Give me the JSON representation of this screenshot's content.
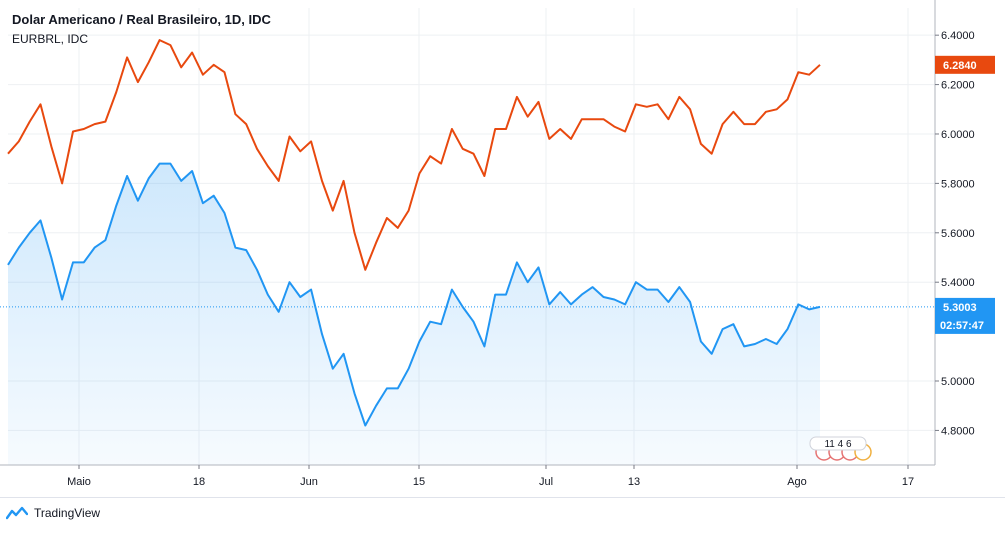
{
  "chart_data": {
    "type": "line",
    "title": "Dolar Americano / Real Brasileiro, 1D, IDC",
    "subtitle": "EURBRL, IDC",
    "x_tick_labels": [
      "Maio",
      "18",
      "Jun",
      "15",
      "Jul",
      "13",
      "Ago",
      "17"
    ],
    "y_tick_labels": [
      "6.4000",
      "6.2000",
      "6.0000",
      "5.8000",
      "5.6000",
      "5.4000",
      "5.0000",
      "4.8000"
    ],
    "ylim": [
      4.66,
      6.51
    ],
    "grid": true,
    "series": [
      {
        "label": "EURBRL",
        "color": "#e8490f",
        "last_value": "6.2840",
        "values": [
          5.92,
          5.97,
          6.05,
          6.12,
          5.95,
          5.8,
          6.01,
          6.02,
          6.04,
          6.05,
          6.17,
          6.31,
          6.21,
          6.29,
          6.38,
          6.36,
          6.27,
          6.33,
          6.24,
          6.28,
          6.25,
          6.08,
          6.04,
          5.94,
          5.87,
          5.81,
          5.99,
          5.93,
          5.97,
          5.81,
          5.69,
          5.81,
          5.6,
          5.45,
          5.56,
          5.66,
          5.62,
          5.69,
          5.84,
          5.91,
          5.88,
          6.02,
          5.94,
          5.92,
          5.83,
          6.02,
          6.02,
          6.15,
          6.07,
          6.13,
          5.98,
          6.02,
          5.98,
          6.06,
          6.06,
          6.06,
          6.03,
          6.01,
          6.12,
          6.11,
          6.12,
          6.06,
          6.15,
          6.1,
          5.96,
          5.92,
          6.04,
          6.09,
          6.04,
          6.04,
          6.09,
          6.1,
          6.14,
          6.25,
          6.24,
          6.28
        ]
      },
      {
        "label": "USDBRL",
        "color": "#2196f3",
        "fill_color": "#e3f0fc",
        "last_value": "5.3003",
        "values": [
          5.47,
          5.54,
          5.6,
          5.65,
          5.5,
          5.33,
          5.48,
          5.48,
          5.54,
          5.57,
          5.71,
          5.83,
          5.73,
          5.82,
          5.88,
          5.88,
          5.81,
          5.85,
          5.72,
          5.75,
          5.68,
          5.54,
          5.53,
          5.45,
          5.35,
          5.28,
          5.4,
          5.34,
          5.37,
          5.19,
          5.05,
          5.11,
          4.95,
          4.82,
          4.9,
          4.97,
          4.97,
          5.05,
          5.16,
          5.24,
          5.23,
          5.37,
          5.3,
          5.24,
          5.14,
          5.35,
          5.35,
          5.48,
          5.4,
          5.46,
          5.31,
          5.36,
          5.31,
          5.35,
          5.38,
          5.34,
          5.33,
          5.31,
          5.4,
          5.37,
          5.37,
          5.32,
          5.38,
          5.32,
          5.16,
          5.11,
          5.21,
          5.23,
          5.14,
          5.15,
          5.17,
          5.15,
          5.21,
          5.31,
          5.29,
          5.3
        ]
      }
    ],
    "time_label": "02:57:47",
    "events_badge": "11 4 6"
  },
  "footer": {
    "brand": "TradingView"
  }
}
